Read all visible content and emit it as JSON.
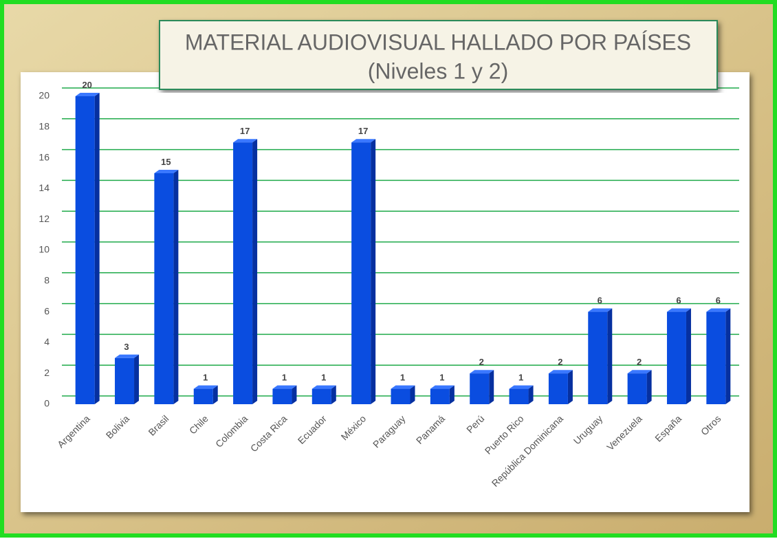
{
  "chart_data": {
    "type": "bar",
    "title": "MATERIAL AUDIOVISUAL HALLADO POR PAÍSES",
    "subtitle": "(Niveles 1 y 2)",
    "categories": [
      "Argentina",
      "Bolivia",
      "Brasil",
      "Chile",
      "Colombia",
      "Costa Rica",
      "Ecuador",
      "México",
      "Paraguay",
      "Panamá",
      "Perú",
      "Puerto Rico",
      "República Dominicana",
      "Uruguay",
      "Venezuela",
      "España",
      "Otros"
    ],
    "values": [
      20,
      3,
      15,
      1,
      17,
      1,
      1,
      17,
      1,
      1,
      2,
      1,
      2,
      6,
      2,
      6,
      6
    ],
    "color": "#0a4de0",
    "ylim": [
      0,
      20
    ],
    "yticks": [
      0,
      2,
      4,
      6,
      8,
      10,
      12,
      14,
      16,
      18,
      20
    ],
    "grid": true
  }
}
